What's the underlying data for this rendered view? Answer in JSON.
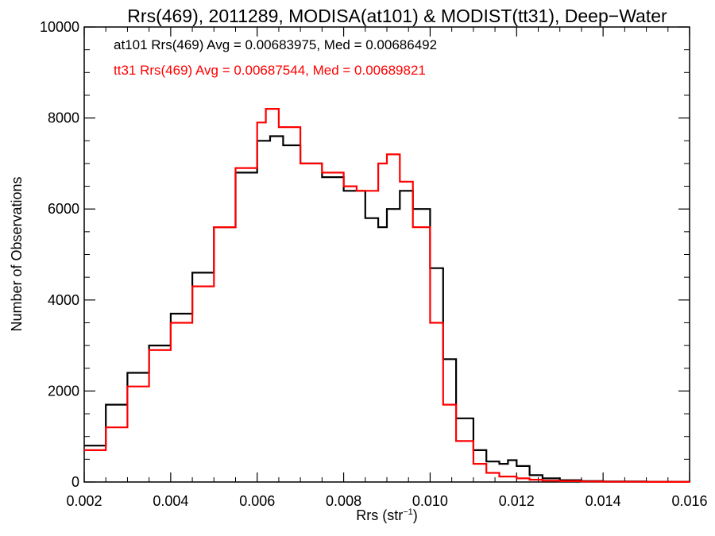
{
  "chart_data": {
    "type": "line",
    "title": "Rrs(469), 2011289, MODISA(at101) & MODIST(tt31), Deep−Water",
    "xlabel": "Rrs (str",
    "xlabel_sup": "−1",
    "xlabel_close": ")",
    "ylabel": "Number of Observations",
    "xlim": [
      0.002,
      0.016
    ],
    "ylim": [
      0,
      10000
    ],
    "x_ticks": [
      "0.002",
      "0.004",
      "0.006",
      "0.008",
      "0.010",
      "0.012",
      "0.014",
      "0.016"
    ],
    "y_ticks": [
      "0",
      "2000",
      "4000",
      "6000",
      "8000",
      "10000"
    ],
    "grid": false,
    "annotations": [
      {
        "text": "at101 Rrs(469) Avg = 0.00683975, Med = 0.00686492",
        "color": "#000000"
      },
      {
        "text": "tt31 Rrs(469) Avg = 0.00687544, Med = 0.00689821",
        "color": "#ff0000"
      }
    ],
    "series": [
      {
        "color": "#000000",
        "x": [
          0.002,
          0.0025,
          0.003,
          0.0035,
          0.004,
          0.0045,
          0.005,
          0.0055,
          0.006,
          0.0063,
          0.0066,
          0.007,
          0.0075,
          0.008,
          0.0085,
          0.0088,
          0.009,
          0.0093,
          0.0096,
          0.01,
          0.0103,
          0.0106,
          0.011,
          0.0113,
          0.0116,
          0.0118,
          0.012,
          0.0123,
          0.0126,
          0.013,
          0.0135,
          0.014,
          0.015,
          0.016
        ],
        "y": [
          800,
          1700,
          2400,
          3000,
          3700,
          4600,
          5600,
          6800,
          7500,
          7600,
          7400,
          7000,
          6700,
          6400,
          5800,
          5600,
          6000,
          6400,
          6000,
          4700,
          2700,
          1400,
          700,
          450,
          400,
          480,
          350,
          150,
          80,
          40,
          20,
          10,
          5,
          0
        ]
      },
      {
        "color": "#ff0000",
        "x": [
          0.002,
          0.0025,
          0.003,
          0.0035,
          0.004,
          0.0045,
          0.005,
          0.0055,
          0.006,
          0.0062,
          0.0065,
          0.007,
          0.0075,
          0.008,
          0.0083,
          0.0086,
          0.0088,
          0.009,
          0.0093,
          0.0096,
          0.01,
          0.0103,
          0.0106,
          0.011,
          0.0113,
          0.0116,
          0.012,
          0.0123,
          0.0126,
          0.013,
          0.0135,
          0.014,
          0.015,
          0.016
        ],
        "y": [
          700,
          1200,
          2100,
          2900,
          3500,
          4300,
          5600,
          6900,
          7900,
          8200,
          7800,
          7000,
          6800,
          6500,
          6400,
          6400,
          7000,
          7200,
          6600,
          5600,
          3500,
          1700,
          900,
          400,
          200,
          120,
          80,
          50,
          30,
          20,
          10,
          5,
          2,
          0
        ]
      }
    ]
  }
}
